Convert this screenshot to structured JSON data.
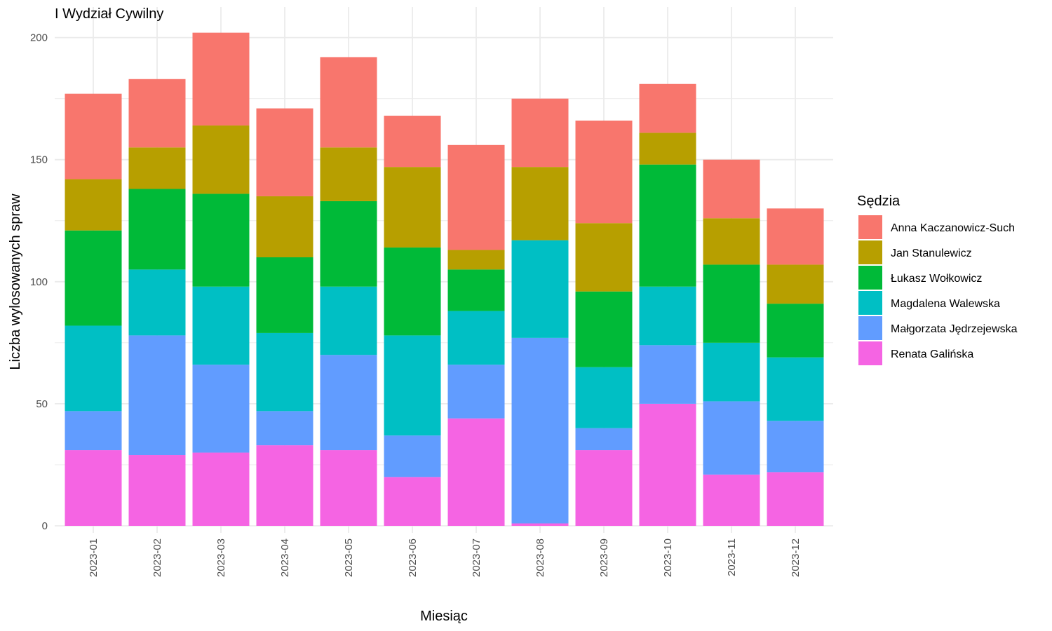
{
  "chart_data": {
    "type": "bar",
    "stacked": true,
    "title": "I Wydział Cywilny",
    "xlabel": "Miesiąc",
    "ylabel": "Liczba wylosowanych spraw",
    "ylim": [
      0,
      210
    ],
    "yticks": [
      0,
      50,
      100,
      150,
      200
    ],
    "grid": true,
    "legend": {
      "title": "Sędzia",
      "position": "right"
    },
    "categories": [
      "2023-01",
      "2023-02",
      "2023-03",
      "2023-04",
      "2023-05",
      "2023-06",
      "2023-07",
      "2023-08",
      "2023-09",
      "2023-10",
      "2023-11",
      "2023-12"
    ],
    "series": [
      {
        "name": "Renata Galińska",
        "color": "#F564E3",
        "values": [
          31,
          29,
          30,
          33,
          31,
          20,
          44,
          1,
          31,
          50,
          21,
          22
        ]
      },
      {
        "name": "Małgorzata Jędrzejewska",
        "color": "#619CFF",
        "values": [
          16,
          49,
          36,
          14,
          39,
          17,
          22,
          76,
          9,
          24,
          30,
          21
        ]
      },
      {
        "name": "Magdalena Walewska",
        "color": "#00BFC4",
        "values": [
          35,
          27,
          32,
          32,
          28,
          41,
          22,
          40,
          25,
          24,
          24,
          26
        ]
      },
      {
        "name": "Łukasz Wołkowicz",
        "color": "#00BA38",
        "values": [
          39,
          33,
          38,
          31,
          35,
          36,
          17,
          0,
          31,
          50,
          32,
          22
        ]
      },
      {
        "name": "Jan Stanulewicz",
        "color": "#B79F00",
        "values": [
          21,
          17,
          28,
          25,
          22,
          33,
          8,
          30,
          28,
          13,
          19,
          16
        ]
      },
      {
        "name": "Anna Kaczanowicz-Such",
        "color": "#F8766D",
        "values": [
          35,
          28,
          38,
          36,
          37,
          21,
          43,
          28,
          42,
          20,
          24,
          23
        ]
      }
    ],
    "legend_order": [
      "Anna Kaczanowicz-Such",
      "Jan Stanulewicz",
      "Łukasz Wołkowicz",
      "Magdalena Walewska",
      "Małgorzata Jędrzejewska",
      "Renata Galińska"
    ]
  }
}
